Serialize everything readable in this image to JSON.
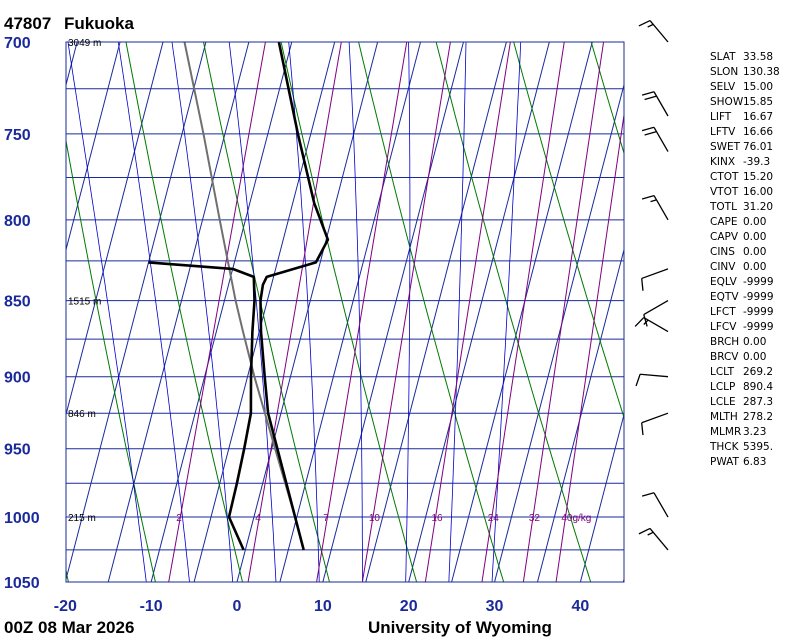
{
  "station": {
    "id": "47807",
    "name": "Fukuoka"
  },
  "footer": {
    "time": "00Z 08 Mar 2026",
    "source": "University of Wyoming"
  },
  "chart_data": {
    "type": "line",
    "title": "47807  Fukuoka",
    "diagram": "skew-T log-P",
    "ylim": [
      1050,
      700
    ],
    "xlim": [
      -20,
      45
    ],
    "pressure_ticks": [
      700,
      750,
      800,
      850,
      900,
      950,
      1000,
      1050
    ],
    "temperature_ticks": [
      -20,
      -10,
      0,
      10,
      20,
      30,
      40
    ],
    "height_labels": [
      {
        "p": 700,
        "text": "3049 m"
      },
      {
        "p": 850,
        "text": "1515 m"
      },
      {
        "p": 925,
        "text": "846 m"
      },
      {
        "p": 1000,
        "text": "215 m"
      }
    ],
    "mixing_ratio_labels": [
      "2",
      "4",
      "7",
      "10",
      "16",
      "24",
      "32",
      "40g/kg"
    ],
    "series": [
      {
        "role": "temperature",
        "color": "#000000",
        "points": [
          [
            1025,
            6.8
          ],
          [
            1000,
            4.8
          ],
          [
            960,
            1.5
          ],
          [
            925,
            -1.5
          ],
          [
            900,
            -3.0
          ],
          [
            870,
            -4.8
          ],
          [
            850,
            -5.8
          ],
          [
            840,
            -6.0
          ],
          [
            835,
            -5.8
          ],
          [
            826,
            -0.5
          ],
          [
            812,
            0.2
          ],
          [
            790,
            -2.5
          ],
          [
            750,
            -6.5
          ],
          [
            700,
            -11.5
          ]
        ]
      },
      {
        "role": "dewpoint",
        "color": "#000000",
        "points": [
          [
            1025,
            -0.2
          ],
          [
            1000,
            -2.9
          ],
          [
            975,
            -3.0
          ],
          [
            950,
            -3.2
          ],
          [
            925,
            -3.5
          ],
          [
            900,
            -4.6
          ],
          [
            870,
            -5.8
          ],
          [
            850,
            -6.5
          ],
          [
            835,
            -7.3
          ],
          [
            830,
            -10
          ],
          [
            826,
            -20
          ]
        ]
      },
      {
        "role": "parcel",
        "color": "#707070",
        "points": [
          [
            1025,
            6.8
          ],
          [
            1000,
            4.8
          ],
          [
            950,
            0.4
          ],
          [
            900,
            -4.2
          ],
          [
            870,
            -6.9
          ],
          [
            850,
            -8.7
          ],
          [
            800,
            -13.0
          ],
          [
            750,
            -17.5
          ],
          [
            700,
            -22.5
          ]
        ]
      }
    ],
    "isotherm_color": "#1a2a9a",
    "dry_adiabat_color": "#007a00",
    "moist_adiabat_color": "#0000cc",
    "mixing_ratio_color": "#800080"
  },
  "indices": [
    {
      "k": "SLAT",
      "v": "33.58"
    },
    {
      "k": "SLON",
      "v": "130.38"
    },
    {
      "k": "SELV",
      "v": "15.00"
    },
    {
      "k": "SHOW",
      "v": "15.85"
    },
    {
      "k": "LIFT",
      "v": "16.67"
    },
    {
      "k": "LFTV",
      "v": "16.66"
    },
    {
      "k": "SWET",
      "v": "76.01"
    },
    {
      "k": "KINX",
      "v": "-39.3"
    },
    {
      "k": "CTOT",
      "v": "15.20"
    },
    {
      "k": "VTOT",
      "v": "16.00"
    },
    {
      "k": "TOTL",
      "v": "31.20"
    },
    {
      "k": "CAPE",
      "v": "0.00"
    },
    {
      "k": "CAPV",
      "v": "0.00"
    },
    {
      "k": "CINS",
      "v": "0.00"
    },
    {
      "k": "CINV",
      "v": "0.00"
    },
    {
      "k": "EQLV",
      "v": "-9999"
    },
    {
      "k": "EQTV",
      "v": "-9999"
    },
    {
      "k": "LFCT",
      "v": "-9999"
    },
    {
      "k": "LFCV",
      "v": "-9999"
    },
    {
      "k": "BRCH",
      "v": "0.00"
    },
    {
      "k": "BRCV",
      "v": "0.00"
    },
    {
      "k": "LCLT",
      "v": "269.2"
    },
    {
      "k": "LCLP",
      "v": "890.4"
    },
    {
      "k": "LCLE",
      "v": "287.3"
    },
    {
      "k": "MLTH",
      "v": "278.2"
    },
    {
      "k": "MLMR",
      "v": "3.23"
    },
    {
      "k": "THCK",
      "v": "5395."
    },
    {
      "k": "PWAT",
      "v": "6.83"
    }
  ],
  "wind_barbs": [
    {
      "p": 1025,
      "dir": 320,
      "kt": 15
    },
    {
      "p": 1000,
      "dir": 330,
      "kt": 10
    },
    {
      "p": 925,
      "dir": 250,
      "kt": 10
    },
    {
      "p": 900,
      "dir": 275,
      "kt": 10
    },
    {
      "p": 870,
      "dir": 300,
      "kt": 15
    },
    {
      "p": 850,
      "dir": 240,
      "kt": 10
    },
    {
      "p": 830,
      "dir": 250,
      "kt": 10
    },
    {
      "p": 800,
      "dir": 330,
      "kt": 15
    },
    {
      "p": 760,
      "dir": 330,
      "kt": 20
    },
    {
      "p": 740,
      "dir": 330,
      "kt": 20
    },
    {
      "p": 700,
      "dir": 320,
      "kt": 15
    }
  ]
}
